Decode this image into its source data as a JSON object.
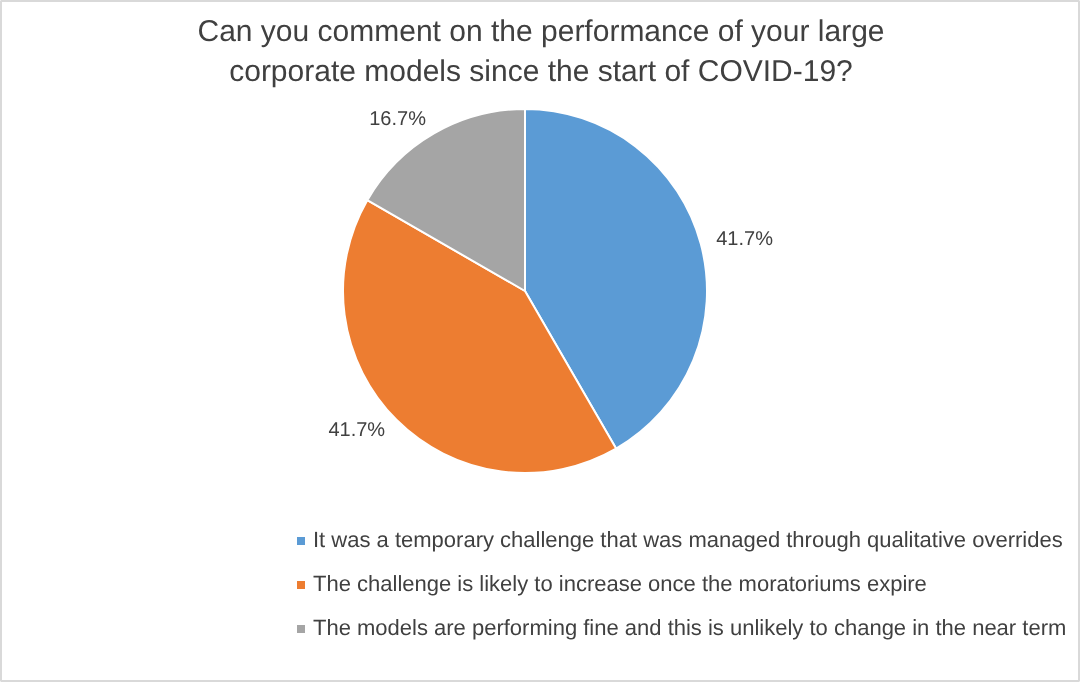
{
  "chart_data": {
    "type": "pie",
    "title": "Can you comment on the performance of your large corporate models since the start of COVID-19?",
    "categories": [
      "It was a temporary challenge that was managed through qualitative overrides",
      "The challenge is likely to increase once the moratoriums expire",
      "The models are performing fine and this is unlikely to change in the near term"
    ],
    "values": [
      41.7,
      41.7,
      16.7
    ],
    "colors": [
      "#5b9bd5",
      "#ed7d31",
      "#a5a5a5"
    ],
    "value_labels": [
      "41.7%",
      "41.7%",
      "16.7%"
    ],
    "legend": "bottom"
  }
}
